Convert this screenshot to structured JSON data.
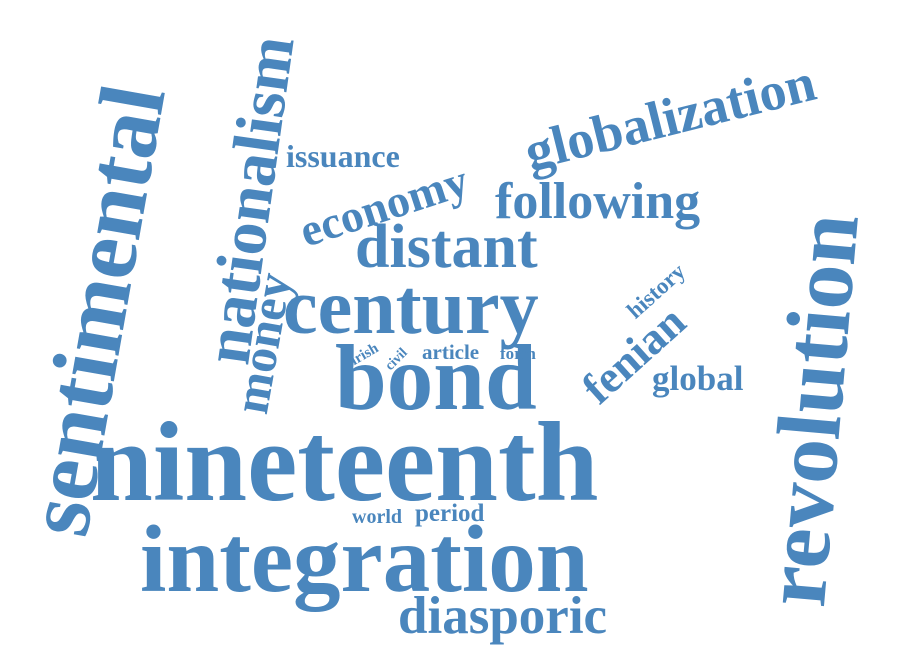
{
  "color": "#4a86bd",
  "words": {
    "nineteenth": "nineteenth",
    "integration": "integration",
    "sentimental": "sentimental",
    "revolution": "revolution",
    "bond": "bond",
    "century": "century",
    "nationalism": "nationalism",
    "globalization": "globalization",
    "distant": "distant",
    "economy": "economy",
    "following": "following",
    "diasporic": "diasporic",
    "money": "money",
    "fenian": "fenian",
    "issuance": "issuance",
    "global": "global",
    "history": "history",
    "article": "article",
    "form": "form",
    "irish": "irish",
    "civil": "civil",
    "world": "world",
    "period": "period"
  }
}
